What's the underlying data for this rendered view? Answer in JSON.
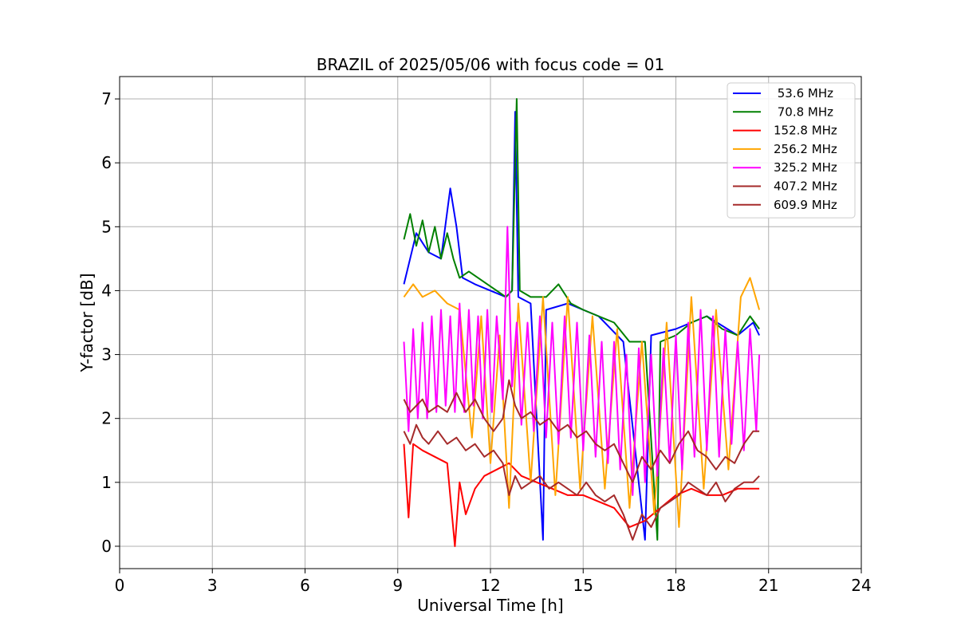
{
  "chart_data": {
    "type": "line",
    "title": "BRAZIL of 2025/05/06 with focus code = 01",
    "xlabel": "Universal Time [h]",
    "ylabel": "Y-factor [dB]",
    "xlim": [
      0,
      24
    ],
    "ylim": [
      -0.35,
      7.35
    ],
    "xticks": [
      0,
      3,
      6,
      9,
      12,
      15,
      18,
      21,
      24
    ],
    "yticks": [
      0,
      1,
      2,
      3,
      4,
      5,
      6,
      7
    ],
    "grid": true,
    "legend_position": "top-right",
    "series": [
      {
        "name": " 53.6 MHz",
        "color": "#0000ff",
        "points": [
          [
            9.2,
            4.1
          ],
          [
            9.6,
            4.9
          ],
          [
            10.0,
            4.6
          ],
          [
            10.4,
            4.5
          ],
          [
            10.7,
            5.6
          ],
          [
            10.9,
            5.0
          ],
          [
            11.1,
            4.2
          ],
          [
            11.5,
            4.1
          ],
          [
            12.0,
            4.0
          ],
          [
            12.5,
            3.9
          ],
          [
            12.7,
            4.0
          ],
          [
            12.8,
            6.8
          ],
          [
            12.9,
            3.9
          ],
          [
            13.3,
            3.8
          ],
          [
            13.7,
            0.1
          ],
          [
            13.8,
            3.7
          ],
          [
            14.5,
            3.8
          ],
          [
            15.5,
            3.6
          ],
          [
            16.3,
            3.2
          ],
          [
            17.0,
            0.1
          ],
          [
            17.2,
            3.3
          ],
          [
            18.0,
            3.4
          ],
          [
            19.0,
            3.6
          ],
          [
            20.0,
            3.3
          ],
          [
            20.5,
            3.5
          ],
          [
            20.7,
            3.3
          ]
        ]
      },
      {
        "name": " 70.8 MHz",
        "color": "#008000",
        "points": [
          [
            9.2,
            4.8
          ],
          [
            9.4,
            5.2
          ],
          [
            9.6,
            4.7
          ],
          [
            9.8,
            5.1
          ],
          [
            10.0,
            4.6
          ],
          [
            10.2,
            5.0
          ],
          [
            10.4,
            4.5
          ],
          [
            10.6,
            4.9
          ],
          [
            10.8,
            4.5
          ],
          [
            11.0,
            4.2
          ],
          [
            11.3,
            4.3
          ],
          [
            11.6,
            4.2
          ],
          [
            11.9,
            4.1
          ],
          [
            12.2,
            4.0
          ],
          [
            12.5,
            3.9
          ],
          [
            12.7,
            4.0
          ],
          [
            12.85,
            7.0
          ],
          [
            12.95,
            4.0
          ],
          [
            13.3,
            3.9
          ],
          [
            13.8,
            3.9
          ],
          [
            14.2,
            4.1
          ],
          [
            14.6,
            3.8
          ],
          [
            15.0,
            3.7
          ],
          [
            15.5,
            3.6
          ],
          [
            16.0,
            3.5
          ],
          [
            16.5,
            3.2
          ],
          [
            17.0,
            3.2
          ],
          [
            17.4,
            0.1
          ],
          [
            17.5,
            3.2
          ],
          [
            18.0,
            3.3
          ],
          [
            18.5,
            3.5
          ],
          [
            19.0,
            3.6
          ],
          [
            19.5,
            3.4
          ],
          [
            20.0,
            3.3
          ],
          [
            20.4,
            3.6
          ],
          [
            20.7,
            3.4
          ]
        ]
      },
      {
        "name": "152.8 MHz",
        "color": "#ff0000",
        "points": [
          [
            9.2,
            1.6
          ],
          [
            9.35,
            0.45
          ],
          [
            9.5,
            1.6
          ],
          [
            9.8,
            1.5
          ],
          [
            10.2,
            1.4
          ],
          [
            10.6,
            1.3
          ],
          [
            10.85,
            0.0
          ],
          [
            11.0,
            1.0
          ],
          [
            11.2,
            0.5
          ],
          [
            11.5,
            0.9
          ],
          [
            11.8,
            1.1
          ],
          [
            12.2,
            1.2
          ],
          [
            12.6,
            1.3
          ],
          [
            13.0,
            1.1
          ],
          [
            13.5,
            1.0
          ],
          [
            14.0,
            0.9
          ],
          [
            14.5,
            0.8
          ],
          [
            15.0,
            0.8
          ],
          [
            15.5,
            0.7
          ],
          [
            16.0,
            0.6
          ],
          [
            16.5,
            0.3
          ],
          [
            17.0,
            0.4
          ],
          [
            17.5,
            0.6
          ],
          [
            18.0,
            0.8
          ],
          [
            18.5,
            0.9
          ],
          [
            19.0,
            0.8
          ],
          [
            19.5,
            0.8
          ],
          [
            20.0,
            0.9
          ],
          [
            20.5,
            0.9
          ],
          [
            20.7,
            0.9
          ]
        ]
      },
      {
        "name": "256.2 MHz",
        "color": "#ffa500",
        "points": [
          [
            9.2,
            3.9
          ],
          [
            9.5,
            4.1
          ],
          [
            9.8,
            3.9
          ],
          [
            10.2,
            4.0
          ],
          [
            10.6,
            3.8
          ],
          [
            11.0,
            3.7
          ],
          [
            11.4,
            1.7
          ],
          [
            11.7,
            3.6
          ],
          [
            12.0,
            1.3
          ],
          [
            12.3,
            3.3
          ],
          [
            12.6,
            0.6
          ],
          [
            12.9,
            3.8
          ],
          [
            13.3,
            1.0
          ],
          [
            13.7,
            3.9
          ],
          [
            14.1,
            0.8
          ],
          [
            14.5,
            3.9
          ],
          [
            14.9,
            0.9
          ],
          [
            15.3,
            3.6
          ],
          [
            15.7,
            0.9
          ],
          [
            16.1,
            3.4
          ],
          [
            16.5,
            0.6
          ],
          [
            16.9,
            3.2
          ],
          [
            17.3,
            0.5
          ],
          [
            17.7,
            3.5
          ],
          [
            18.1,
            0.3
          ],
          [
            18.5,
            3.9
          ],
          [
            18.9,
            0.9
          ],
          [
            19.3,
            3.7
          ],
          [
            19.7,
            1.2
          ],
          [
            20.1,
            3.9
          ],
          [
            20.4,
            4.2
          ],
          [
            20.7,
            3.7
          ]
        ]
      },
      {
        "name": "325.2 MHz",
        "color": "#ff00ff",
        "points": [
          [
            9.2,
            3.2
          ],
          [
            9.35,
            1.8
          ],
          [
            9.5,
            3.4
          ],
          [
            9.65,
            2.0
          ],
          [
            9.8,
            3.5
          ],
          [
            9.95,
            2.0
          ],
          [
            10.1,
            3.6
          ],
          [
            10.25,
            2.1
          ],
          [
            10.4,
            3.7
          ],
          [
            10.55,
            2.2
          ],
          [
            10.7,
            3.6
          ],
          [
            10.85,
            2.1
          ],
          [
            11.0,
            3.8
          ],
          [
            11.15,
            2.1
          ],
          [
            11.3,
            3.7
          ],
          [
            11.45,
            2.2
          ],
          [
            11.6,
            3.6
          ],
          [
            11.75,
            2.0
          ],
          [
            11.9,
            3.7
          ],
          [
            12.05,
            2.1
          ],
          [
            12.2,
            3.6
          ],
          [
            12.4,
            2.3
          ],
          [
            12.55,
            5.0
          ],
          [
            12.7,
            2.5
          ],
          [
            12.85,
            3.5
          ],
          [
            13.0,
            1.9
          ],
          [
            13.2,
            3.5
          ],
          [
            13.4,
            1.8
          ],
          [
            13.6,
            3.6
          ],
          [
            13.8,
            1.7
          ],
          [
            14.0,
            3.5
          ],
          [
            14.2,
            1.6
          ],
          [
            14.4,
            3.6
          ],
          [
            14.6,
            1.7
          ],
          [
            14.8,
            3.5
          ],
          [
            15.0,
            1.5
          ],
          [
            15.2,
            3.3
          ],
          [
            15.4,
            1.4
          ],
          [
            15.6,
            3.2
          ],
          [
            15.8,
            1.3
          ],
          [
            16.0,
            3.2
          ],
          [
            16.2,
            1.2
          ],
          [
            16.4,
            3.0
          ],
          [
            16.6,
            0.8
          ],
          [
            16.8,
            3.1
          ],
          [
            17.0,
            1.0
          ],
          [
            17.2,
            3.0
          ],
          [
            17.4,
            1.1
          ],
          [
            17.6,
            3.1
          ],
          [
            17.8,
            1.3
          ],
          [
            18.0,
            3.3
          ],
          [
            18.2,
            1.2
          ],
          [
            18.4,
            3.5
          ],
          [
            18.6,
            1.4
          ],
          [
            18.8,
            3.7
          ],
          [
            19.0,
            1.5
          ],
          [
            19.2,
            3.6
          ],
          [
            19.4,
            1.4
          ],
          [
            19.6,
            3.4
          ],
          [
            19.8,
            1.6
          ],
          [
            20.0,
            3.2
          ],
          [
            20.2,
            1.5
          ],
          [
            20.4,
            3.4
          ],
          [
            20.6,
            1.8
          ],
          [
            20.7,
            3.0
          ]
        ]
      },
      {
        "name": "407.2 MHz",
        "color": "#a52a2a",
        "points": [
          [
            9.2,
            1.8
          ],
          [
            9.4,
            1.6
          ],
          [
            9.6,
            1.9
          ],
          [
            9.8,
            1.7
          ],
          [
            10.0,
            1.6
          ],
          [
            10.3,
            1.8
          ],
          [
            10.6,
            1.6
          ],
          [
            10.9,
            1.7
          ],
          [
            11.2,
            1.5
          ],
          [
            11.5,
            1.6
          ],
          [
            11.8,
            1.4
          ],
          [
            12.1,
            1.5
          ],
          [
            12.4,
            1.3
          ],
          [
            12.6,
            0.8
          ],
          [
            12.8,
            1.1
          ],
          [
            13.0,
            0.9
          ],
          [
            13.3,
            1.0
          ],
          [
            13.6,
            1.1
          ],
          [
            13.9,
            0.9
          ],
          [
            14.2,
            1.0
          ],
          [
            14.5,
            0.9
          ],
          [
            14.8,
            0.8
          ],
          [
            15.1,
            1.0
          ],
          [
            15.4,
            0.8
          ],
          [
            15.7,
            0.7
          ],
          [
            16.0,
            0.8
          ],
          [
            16.3,
            0.5
          ],
          [
            16.6,
            0.1
          ],
          [
            16.9,
            0.5
          ],
          [
            17.2,
            0.3
          ],
          [
            17.5,
            0.6
          ],
          [
            17.8,
            0.7
          ],
          [
            18.1,
            0.8
          ],
          [
            18.4,
            1.0
          ],
          [
            18.7,
            0.9
          ],
          [
            19.0,
            0.8
          ],
          [
            19.3,
            1.0
          ],
          [
            19.6,
            0.7
          ],
          [
            19.9,
            0.9
          ],
          [
            20.2,
            1.0
          ],
          [
            20.5,
            1.0
          ],
          [
            20.7,
            1.1
          ]
        ]
      },
      {
        "name": "609.9 MHz",
        "color": "#a52a2a",
        "points": [
          [
            9.2,
            2.3
          ],
          [
            9.4,
            2.1
          ],
          [
            9.6,
            2.2
          ],
          [
            9.8,
            2.3
          ],
          [
            10.0,
            2.1
          ],
          [
            10.3,
            2.2
          ],
          [
            10.6,
            2.1
          ],
          [
            10.9,
            2.4
          ],
          [
            11.2,
            2.1
          ],
          [
            11.5,
            2.3
          ],
          [
            11.8,
            2.0
          ],
          [
            12.1,
            1.8
          ],
          [
            12.4,
            2.0
          ],
          [
            12.6,
            2.6
          ],
          [
            12.8,
            2.2
          ],
          [
            13.0,
            2.0
          ],
          [
            13.3,
            2.1
          ],
          [
            13.6,
            1.9
          ],
          [
            13.9,
            2.0
          ],
          [
            14.2,
            1.8
          ],
          [
            14.5,
            1.9
          ],
          [
            14.8,
            1.7
          ],
          [
            15.1,
            1.8
          ],
          [
            15.4,
            1.6
          ],
          [
            15.7,
            1.5
          ],
          [
            16.0,
            1.6
          ],
          [
            16.3,
            1.3
          ],
          [
            16.6,
            1.0
          ],
          [
            16.9,
            1.4
          ],
          [
            17.2,
            1.2
          ],
          [
            17.5,
            1.5
          ],
          [
            17.8,
            1.3
          ],
          [
            18.1,
            1.6
          ],
          [
            18.4,
            1.8
          ],
          [
            18.7,
            1.5
          ],
          [
            19.0,
            1.4
          ],
          [
            19.3,
            1.2
          ],
          [
            19.6,
            1.4
          ],
          [
            19.9,
            1.3
          ],
          [
            20.2,
            1.6
          ],
          [
            20.5,
            1.8
          ],
          [
            20.7,
            1.8
          ]
        ]
      }
    ]
  }
}
